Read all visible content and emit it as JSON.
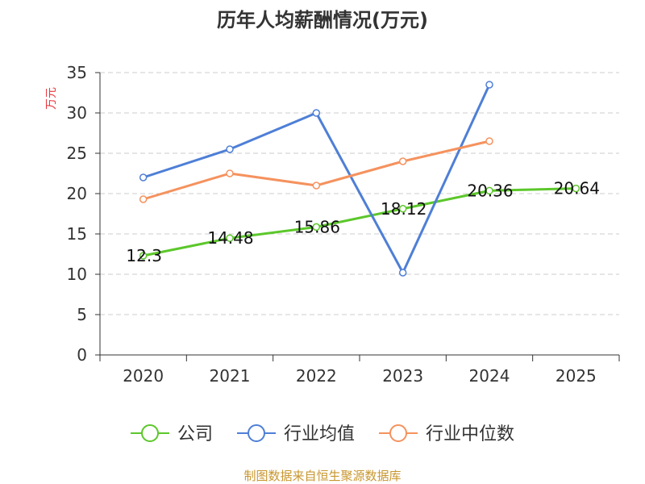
{
  "chart_data": {
    "type": "line",
    "title": "历年人均薪酬情况(万元)",
    "ylabel": "万元",
    "xlabel": "",
    "categories": [
      "2020",
      "2021",
      "2022",
      "2023",
      "2024",
      "2025"
    ],
    "ylim": [
      0,
      35
    ],
    "yticks": [
      0,
      5,
      10,
      15,
      20,
      25,
      30,
      35
    ],
    "grid": true,
    "legend_position": "bottom",
    "series": [
      {
        "name": "公司",
        "color": "#5cc72b",
        "values": [
          12.3,
          14.48,
          15.86,
          18.12,
          20.36,
          20.64
        ],
        "labels": [
          "12.3",
          "14.48",
          "15.86",
          "18.12",
          "20.36",
          "20.64"
        ],
        "show_labels": true
      },
      {
        "name": "行业均值",
        "color": "#4e7fd6",
        "values": [
          22.0,
          25.5,
          30.0,
          10.2,
          33.5,
          null
        ],
        "show_labels": false
      },
      {
        "name": "行业中位数",
        "color": "#f5925e",
        "values": [
          19.3,
          22.5,
          21.0,
          24.0,
          26.5,
          null
        ],
        "show_labels": false
      }
    ],
    "source": "制图数据来自恒生聚源数据库"
  },
  "colors": {
    "title": "#333333",
    "ylabel": "#e8383d",
    "axis": "#333333",
    "grid": "#cccccc",
    "source": "#c8962e"
  }
}
